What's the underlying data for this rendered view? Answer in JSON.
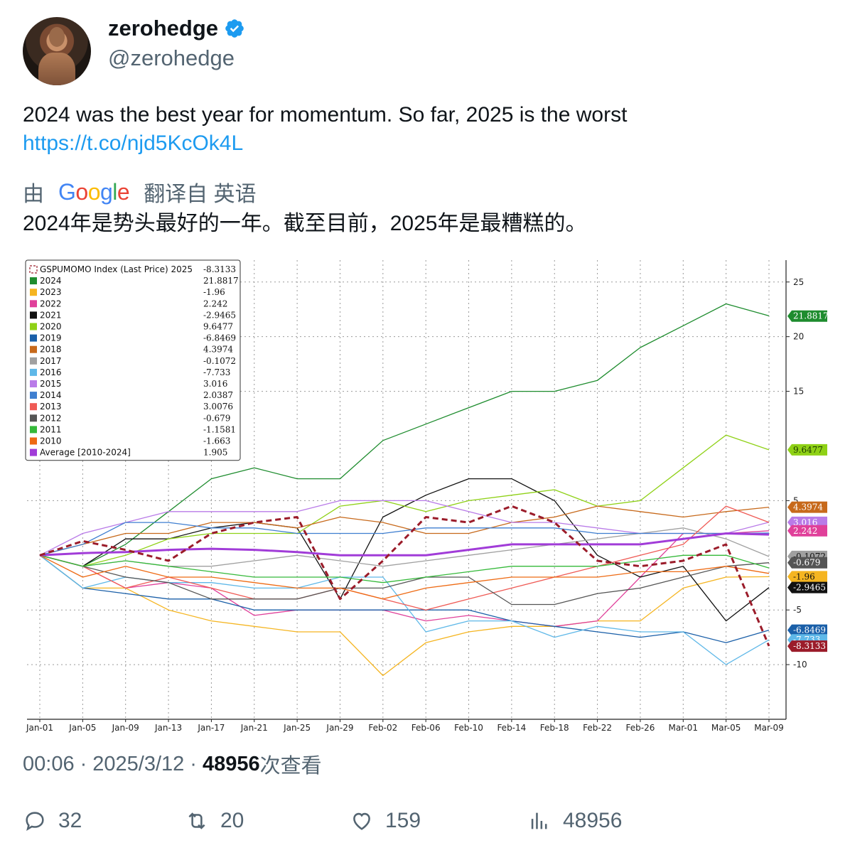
{
  "user": {
    "display_name": "zerohedge",
    "handle": "@zerohedge",
    "verified_icon": "verified-badge-icon"
  },
  "tweet": {
    "text": "2024 was the best year for momentum. So far, 2025 is the worst",
    "link": "https://t.co/njd5KcOk4L"
  },
  "translation": {
    "prefix": "由",
    "provider": "Google",
    "suffix": "翻译自 英语",
    "text": "2024年是势头最好的一年。截至目前，2025年是最糟糕的。"
  },
  "meta": {
    "time": "00:06",
    "sep1": "·",
    "date": "2025/3/12",
    "sep2": "·",
    "views": "48956",
    "views_label": "次查看"
  },
  "actions": {
    "replies": "32",
    "retweets": "20",
    "likes": "159",
    "views": "48956"
  },
  "chart_data": {
    "type": "line",
    "x": [
      "Jan-01",
      "Jan-05",
      "Jan-09",
      "Jan-13",
      "Jan-17",
      "Jan-21",
      "Jan-25",
      "Jan-29",
      "Feb-02",
      "Feb-06",
      "Feb-10",
      "Feb-14",
      "Feb-18",
      "Feb-22",
      "Feb-26",
      "Mar-01",
      "Mar-05",
      "Mar-09"
    ],
    "y_ticks": [
      25,
      20,
      15,
      5,
      -5,
      -10
    ],
    "ylim": [
      -15,
      27
    ],
    "grid": true,
    "legend_position": "top-left",
    "legend_title": "GSPUMOMO Index (Last Price)",
    "series": [
      {
        "name": "2025",
        "last": "-8.3133",
        "color": "#9b1c2a",
        "dashed": true,
        "values": [
          0,
          1.3,
          0.5,
          -0.5,
          2,
          3,
          3.5,
          -4,
          -0.5,
          3.5,
          3,
          4.5,
          3,
          -0.5,
          -1,
          -0.5,
          1,
          -8.3
        ]
      },
      {
        "name": "2024",
        "last": "21.8817",
        "color": "#1e8c2e",
        "values": [
          0,
          -1,
          1,
          4,
          7,
          8,
          7,
          7,
          10.5,
          12,
          13.5,
          15,
          15,
          16,
          19,
          21,
          23,
          21.9
        ]
      },
      {
        "name": "2023",
        "last": "-1.96",
        "color": "#f5b521",
        "values": [
          0,
          -3,
          -3,
          -5,
          -6,
          -6.5,
          -7,
          -7,
          -11,
          -8,
          -7,
          -6.5,
          -6.5,
          -6,
          -6,
          -3,
          -2,
          -1.96
        ]
      },
      {
        "name": "2022",
        "last": "2.242",
        "color": "#e0409a",
        "values": [
          0,
          -1,
          -3,
          -2.5,
          -3,
          -5.5,
          -5,
          -5,
          -5,
          -6,
          -5.5,
          -6,
          -6.5,
          -6,
          -2,
          2,
          2,
          2.242
        ]
      },
      {
        "name": "2021",
        "last": "-2.9465",
        "color": "#111111",
        "values": [
          0,
          -1,
          1.5,
          1.5,
          2.5,
          3,
          2.5,
          -4,
          3.5,
          5.5,
          7,
          7,
          5,
          0,
          -2,
          -1,
          -6,
          -2.95
        ]
      },
      {
        "name": "2020",
        "last": "9.6477",
        "color": "#8fd116",
        "values": [
          0,
          -1,
          0,
          1.5,
          2,
          2,
          2,
          4.5,
          5,
          4,
          5,
          5.5,
          6,
          4.5,
          5,
          8,
          11,
          9.65
        ]
      },
      {
        "name": "2019",
        "last": "-6.8469",
        "color": "#1a5fa8",
        "values": [
          0,
          -3,
          -3.5,
          -4,
          -4,
          -5,
          -5,
          -5,
          -5,
          -5,
          -5,
          -6,
          -6.5,
          -7,
          -7.5,
          -7,
          -8,
          -6.85
        ]
      },
      {
        "name": "2018",
        "last": "4.3974",
        "color": "#c7691b",
        "values": [
          0,
          1,
          2,
          2,
          3,
          3,
          2.5,
          3.5,
          3,
          2,
          2,
          3,
          3.5,
          4.5,
          4,
          3.5,
          4,
          4.4
        ]
      },
      {
        "name": "2017",
        "last": "-0.1072",
        "color": "#a0a0a0",
        "values": [
          0,
          -1,
          -0.5,
          -1,
          -1,
          -0.5,
          0,
          -0.5,
          -1,
          -0.5,
          0,
          0.5,
          1,
          1.5,
          2,
          2.5,
          1.5,
          -0.11
        ]
      },
      {
        "name": "2016",
        "last": "-7.733",
        "color": "#5fb8e8",
        "values": [
          0,
          -3,
          -2,
          -2.5,
          -2.5,
          -3,
          -3,
          -2,
          -2,
          -7,
          -6,
          -6,
          -7.5,
          -6.5,
          -7,
          -7,
          -10,
          -7.73
        ]
      },
      {
        "name": "2015",
        "last": "3.016",
        "color": "#b97be8",
        "values": [
          0,
          2,
          3,
          4,
          4,
          4,
          4,
          5,
          5,
          5,
          4,
          3,
          3,
          2.5,
          2,
          2,
          2,
          3.02
        ]
      },
      {
        "name": "2014",
        "last": "2.0387",
        "color": "#3f7fd0",
        "values": [
          0,
          1,
          3,
          3,
          2.5,
          2.5,
          2,
          2,
          2,
          2.5,
          2.5,
          2.5,
          2.5,
          2,
          2,
          2,
          2,
          2.04
        ]
      },
      {
        "name": "2013",
        "last": "3.0076",
        "color": "#ef5a55",
        "values": [
          0,
          -1,
          -3,
          -2,
          -3,
          -4,
          -4,
          -3,
          -4,
          -5,
          -4,
          -3,
          -2,
          -1,
          0,
          1,
          4.5,
          3.01
        ]
      },
      {
        "name": "2012",
        "last": "-0.679",
        "color": "#555555",
        "values": [
          0,
          -1,
          -2,
          -2.5,
          -4,
          -4,
          -4,
          -3,
          -3,
          -2,
          -2,
          -4.5,
          -4.5,
          -3.5,
          -3,
          -2,
          -1,
          -0.68
        ]
      },
      {
        "name": "2011",
        "last": "-1.1581",
        "color": "#35b93a",
        "values": [
          0,
          -1,
          -0.5,
          -1,
          -1.5,
          -2,
          -2,
          -2,
          -2.5,
          -2,
          -1.5,
          -1,
          -1,
          -1,
          -0.5,
          0,
          0,
          -1.16
        ]
      },
      {
        "name": "2010",
        "last": "-1.663",
        "color": "#ee6a13",
        "values": [
          0,
          -2,
          -1,
          -2,
          -2,
          -2.5,
          -3,
          -3,
          -4,
          -3,
          -2.5,
          -2,
          -2,
          -2,
          -1.5,
          -1.5,
          -1,
          -1.66
        ]
      },
      {
        "name": "Average  [2010-2024]",
        "last": "1.905",
        "color": "#a13cd8",
        "thick": true,
        "values": [
          0,
          0.2,
          0.3,
          0.5,
          0.6,
          0.5,
          0.3,
          0,
          0,
          0,
          0.5,
          1,
          1,
          1,
          1,
          1.5,
          2,
          1.9
        ]
      }
    ],
    "right_labels": [
      {
        "text": "21.8817",
        "value": 21.8817,
        "color": "#1e8c2e",
        "fg": "#ffffff"
      },
      {
        "text": "9.6477",
        "value": 9.6477,
        "color": "#8fd116",
        "fg": "#1a3a00"
      },
      {
        "text": "4.3974",
        "value": 4.3974,
        "color": "#c7691b",
        "fg": "#ffffff"
      },
      {
        "text": "3.016",
        "value": 3.016,
        "color": "#b97be8",
        "fg": "#ffffff"
      },
      {
        "text": "2.242",
        "value": 2.242,
        "color": "#e0409a",
        "fg": "#ffffff"
      },
      {
        "text": "-0.1072",
        "value": -0.1072,
        "color": "#a0a0a0",
        "fg": "#111111"
      },
      {
        "text": "-0.679",
        "value": -0.679,
        "color": "#555555",
        "fg": "#ffffff"
      },
      {
        "text": "-1.96",
        "value": -1.96,
        "color": "#f5b521",
        "fg": "#111111"
      },
      {
        "text": "-2.9465",
        "value": -2.9465,
        "color": "#111111",
        "fg": "#ffffff"
      },
      {
        "text": "-6.8469",
        "value": -6.8469,
        "color": "#1a5fa8",
        "fg": "#ffffff"
      },
      {
        "text": "-7.733",
        "value": -7.733,
        "color": "#5fb8e8",
        "fg": "#ffffff"
      },
      {
        "text": "-8.3133",
        "value": -8.3133,
        "color": "#9b1c2a",
        "fg": "#ffffff"
      }
    ]
  }
}
